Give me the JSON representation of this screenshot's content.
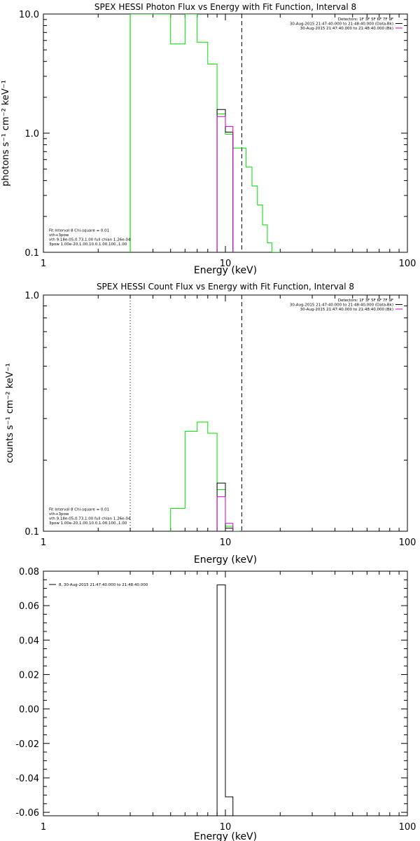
{
  "chart_data": [
    {
      "type": "line",
      "title": "SPEX HESSI Photon Flux vs Energy with Fit Function, Interval 8",
      "xlabel": "Energy (keV)",
      "ylabel": "photons s⁻¹ cm⁻² keV⁻¹",
      "xscale": "log",
      "yscale": "log",
      "xlim": [
        1,
        100
      ],
      "ylim": [
        0.1,
        10.0
      ],
      "xticks": [
        1,
        10,
        100
      ],
      "xtick_labels": [
        "1",
        "10",
        "100"
      ],
      "yticks": [
        0.1,
        1.0,
        10.0
      ],
      "ytick_labels": [
        "0.1",
        "1.0",
        "10.0"
      ],
      "grid": false,
      "vlines": [
        {
          "x": 3.0,
          "style": "dotted",
          "color": "#000000"
        },
        {
          "x": 3.0,
          "style": "solid",
          "color": "#00c000"
        },
        {
          "x": 12.3,
          "style": "dashed",
          "color": "#000000"
        }
      ],
      "legend_right": {
        "position": "top-right",
        "entries": [
          {
            "text": "Detectors: 1F 3F 5F 6F 7F 9F",
            "color": null
          },
          {
            "text": "30-Aug-2015 21:47:40.000 to 21:48:40.000 (Data-Bk)",
            "color": "#000000"
          },
          {
            "text": "30-Aug-2015 21:47:40.000 to 21:48:40.000 (Bk)",
            "color": "#cc00cc"
          }
        ]
      },
      "legend_left": {
        "position": "bottom-left",
        "entries": [
          {
            "text": "Fit Interval 8   Chi-square = 0.01",
            "color": null
          },
          {
            "text": "vth+3pow",
            "color": "#cc0000"
          },
          {
            "text": "vth 9.18e-05,0.73,1.00  full chian 1.26e-04",
            "color": "#00dd00"
          },
          {
            "text": "3pow 1.00e-20,1.00,10.0,1.00,100.,1.00",
            "color": "#ddaa00"
          }
        ]
      },
      "series": [
        {
          "color": "#00dd00",
          "style": "step",
          "edges": [
            3.0,
            4.0,
            5.0,
            6.0,
            7.0,
            8.0,
            9.0,
            10.0,
            11.0,
            12.0,
            13.0,
            14.0,
            15.0,
            16.0,
            17.0,
            18.0,
            19.0,
            20.0
          ],
          "values": [
            10.0,
            10.0,
            5.6,
            10.0,
            5.8,
            3.8,
            1.45,
            0.98,
            0.75,
            0.75,
            0.52,
            0.36,
            0.25,
            0.17,
            0.12,
            0.1,
            0.09
          ]
        },
        {
          "color": "#000000",
          "style": "step",
          "edges": [
            9.0,
            10.0,
            11.0
          ],
          "values": [
            1.58,
            1.02
          ]
        },
        {
          "color": "#cc00cc",
          "style": "step",
          "edges": [
            9.0,
            10.0,
            11.0
          ],
          "values": [
            1.38,
            1.14
          ]
        }
      ]
    },
    {
      "type": "line",
      "title": "SPEX HESSI Count Flux vs Energy with Fit Function, Interval 8",
      "xlabel": "Energy (keV)",
      "ylabel": "counts s⁻¹ cm⁻² keV⁻¹",
      "xscale": "log",
      "yscale": "log",
      "xlim": [
        1,
        100
      ],
      "ylim": [
        0.1,
        1.0
      ],
      "xticks": [
        1,
        10,
        100
      ],
      "xtick_labels": [
        "1",
        "10",
        "100"
      ],
      "yticks": [
        0.1,
        1.0
      ],
      "ytick_labels": [
        "0.1",
        "1.0"
      ],
      "grid": false,
      "vlines": [
        {
          "x": 3.0,
          "style": "dotted",
          "color": "#000000"
        },
        {
          "x": 12.3,
          "style": "dashed",
          "color": "#000000"
        }
      ],
      "legend_right": {
        "position": "top-right",
        "entries": [
          {
            "text": "Detectors: 1F 3F 5F 6F 7F 9F",
            "color": null
          },
          {
            "text": "30-Aug-2015 21:47:40.000 to 21:48:40.000 (Data-Bk)",
            "color": "#000000"
          },
          {
            "text": "30-Aug-2015 21:47:40.000 to 21:48:40.000 (Bk)",
            "color": "#cc00cc"
          }
        ]
      },
      "legend_left": {
        "position": "bottom-left",
        "entries": [
          {
            "text": "Fit Interval 8   Chi-square = 0.01",
            "color": null
          },
          {
            "text": "vth+3pow",
            "color": "#cc0000"
          },
          {
            "text": "vth 9.18e-05,0.73,1.00  full chian 1.26e-04",
            "color": "#00dd00"
          },
          {
            "text": "3pow 1.00e-20,1.00,10.0,1.00,100.,1.00",
            "color": "#ddaa00"
          }
        ]
      },
      "series": [
        {
          "color": "#00dd00",
          "style": "step",
          "edges": [
            5.0,
            6.0,
            7.0,
            8.0,
            9.0,
            10.0,
            11.0,
            12.0
          ],
          "values": [
            0.125,
            0.265,
            0.29,
            0.26,
            0.15,
            0.105,
            0.095
          ]
        },
        {
          "color": "#000000",
          "style": "step",
          "edges": [
            9.0,
            10.0,
            11.0
          ],
          "values": [
            0.16,
            0.103
          ]
        },
        {
          "color": "#cc00cc",
          "style": "step",
          "edges": [
            9.0,
            10.0,
            11.0
          ],
          "values": [
            0.14,
            0.108
          ]
        }
      ]
    },
    {
      "type": "bar",
      "title": "",
      "xlabel": "Energy (keV)",
      "ylabel": "",
      "xscale": "log",
      "yscale": "linear",
      "xlim": [
        1,
        100
      ],
      "ylim": [
        -0.062,
        0.08
      ],
      "xticks": [
        1,
        10,
        100
      ],
      "xtick_labels": [
        "1",
        "10",
        "100"
      ],
      "yticks": [
        -0.06,
        -0.04,
        -0.02,
        0.0,
        0.02,
        0.04,
        0.06,
        0.08
      ],
      "ytick_labels": [
        "-0.06",
        "-0.04",
        "-0.02",
        "0.00",
        "0.02",
        "0.04",
        "0.06",
        "0.08"
      ],
      "grid": false,
      "legend_left": {
        "position": "top-left",
        "entries": [
          {
            "text": "8, 30-Aug-2015 21:47:40.000 to 21:48:40.000",
            "color": "#000000"
          }
        ]
      },
      "series": [
        {
          "color": "#000000",
          "style": "step",
          "edges": [
            9.0,
            10.0,
            11.0
          ],
          "values": [
            0.072,
            -0.051
          ]
        }
      ]
    }
  ]
}
